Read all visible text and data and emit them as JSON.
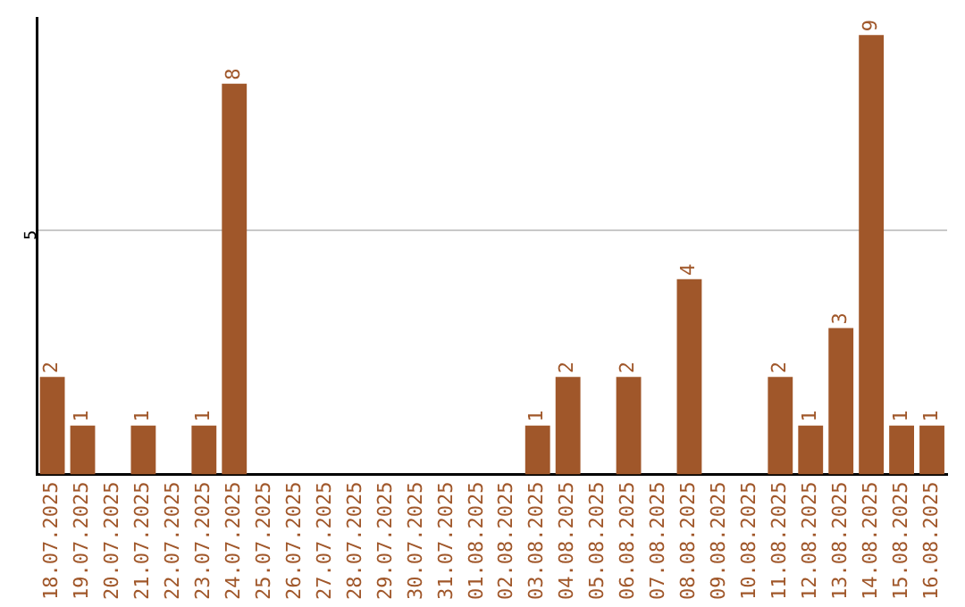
{
  "chart_data": {
    "type": "bar",
    "categories": [
      "18.07.2025",
      "19.07.2025",
      "20.07.2025",
      "21.07.2025",
      "22.07.2025",
      "23.07.2025",
      "24.07.2025",
      "25.07.2025",
      "26.07.2025",
      "27.07.2025",
      "28.07.2025",
      "29.07.2025",
      "30.07.2025",
      "31.07.2025",
      "01.08.2025",
      "02.08.2025",
      "03.08.2025",
      "04.08.2025",
      "05.08.2025",
      "06.08.2025",
      "07.08.2025",
      "08.08.2025",
      "09.08.2025",
      "10.08.2025",
      "11.08.2025",
      "12.08.2025",
      "13.08.2025",
      "14.08.2025",
      "15.08.2025",
      "16.08.2025"
    ],
    "values": [
      2,
      1,
      0,
      1,
      0,
      1,
      8,
      0,
      0,
      0,
      0,
      0,
      0,
      0,
      0,
      0,
      1,
      2,
      0,
      2,
      0,
      4,
      0,
      0,
      2,
      1,
      3,
      9,
      1,
      1
    ],
    "value_labels": [
      "2",
      "1",
      null,
      "1",
      null,
      "1",
      "8",
      null,
      null,
      null,
      null,
      null,
      null,
      null,
      null,
      null,
      "1",
      "2",
      null,
      "2",
      null,
      "4",
      null,
      null,
      "2",
      "1",
      "3",
      "9",
      "1",
      "1"
    ],
    "color": "#a0572a",
    "ylim": [
      0,
      9.35
    ],
    "yticks": [
      5
    ],
    "grid": "y",
    "legend": false
  }
}
